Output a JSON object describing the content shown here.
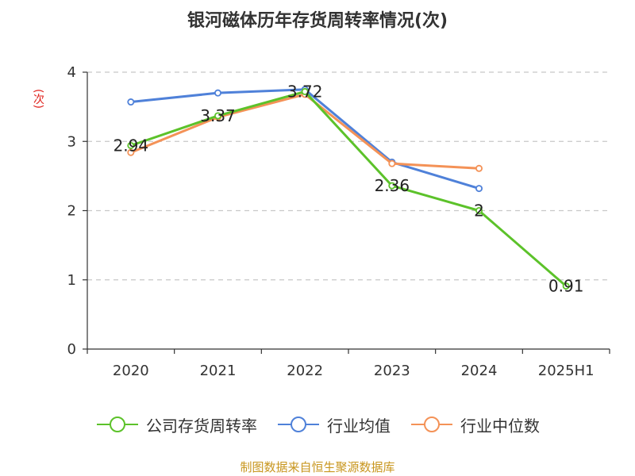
{
  "title": "银河磁体历年存货周转率情况(次)",
  "footer": "制图数据来自恒生聚源数据库",
  "chart_data": {
    "type": "line",
    "title": "银河磁体历年存货周转率情况(次)",
    "ylabel": "(次)",
    "xlabel": "",
    "categories": [
      "2020",
      "2021",
      "2022",
      "2023",
      "2024",
      "2025H1"
    ],
    "ylim": [
      0,
      4
    ],
    "yticks": [
      0,
      1,
      2,
      3,
      4
    ],
    "grid": true,
    "legend_position": "bottom",
    "series": [
      {
        "name": "公司存货周转率",
        "color": "#5cc22a",
        "values": [
          2.94,
          3.37,
          3.72,
          2.36,
          2,
          0.91
        ],
        "labels": [
          "2.94",
          "3.37",
          "3.72",
          "2.36",
          "2",
          "0.91"
        ]
      },
      {
        "name": "行业均值",
        "color": "#4f81d9",
        "values": [
          3.57,
          3.7,
          3.75,
          2.7,
          2.32,
          null
        ]
      },
      {
        "name": "行业中位数",
        "color": "#f49257",
        "values": [
          2.84,
          3.35,
          3.68,
          2.68,
          2.61,
          null
        ]
      }
    ]
  }
}
